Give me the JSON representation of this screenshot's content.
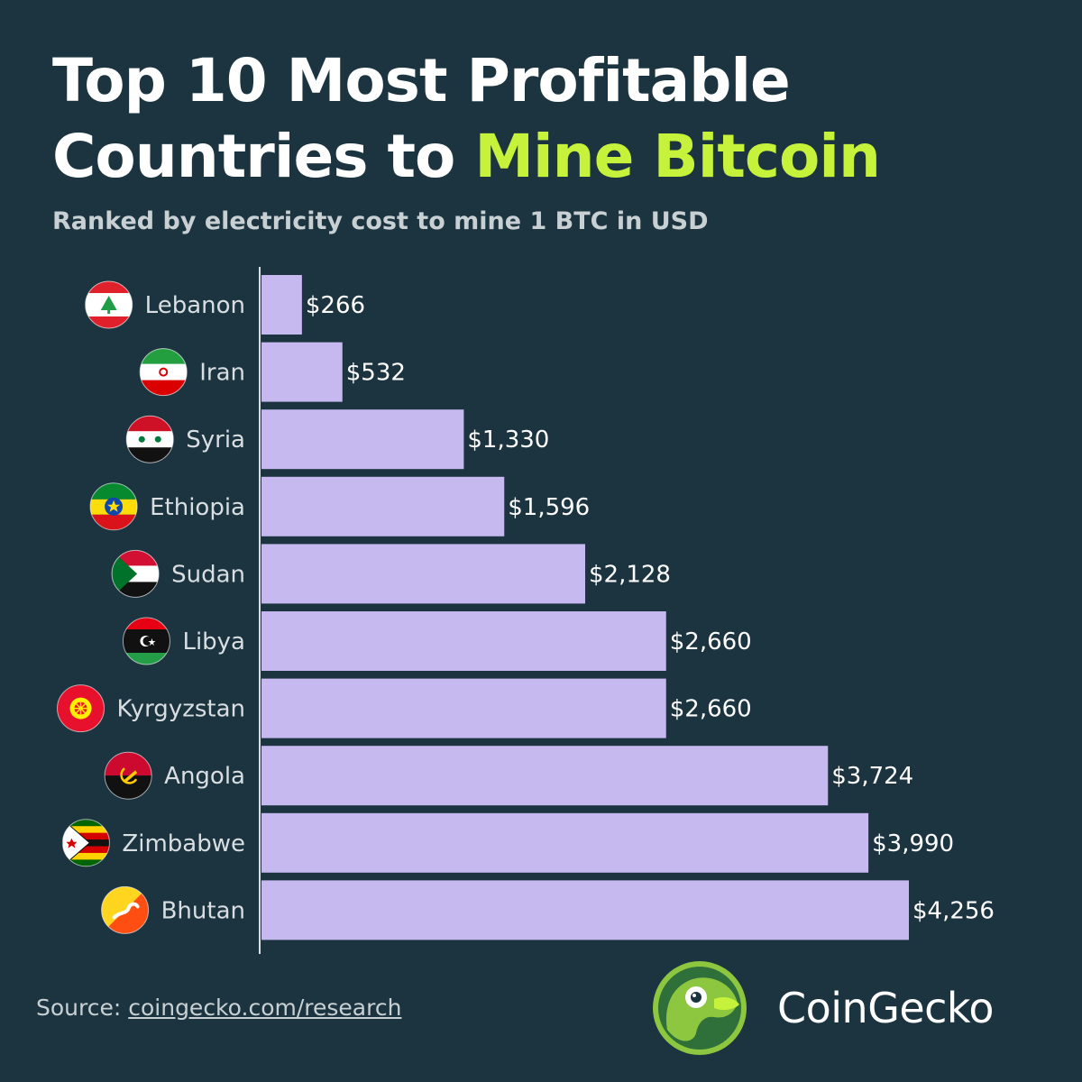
{
  "title": {
    "line1": "Top 10 Most Profitable",
    "line2_plain": "Countries to ",
    "line2_accent": "Mine Bitcoin"
  },
  "subtitle": "Ranked by electricity cost to mine 1 BTC in USD",
  "chart_data": {
    "type": "bar",
    "orientation": "horizontal",
    "categories": [
      "Lebanon",
      "Iran",
      "Syria",
      "Ethiopia",
      "Sudan",
      "Libya",
      "Kyrgyzstan",
      "Angola",
      "Zimbabwe",
      "Bhutan"
    ],
    "values": [
      266,
      532,
      1330,
      1596,
      2128,
      2660,
      2660,
      3724,
      3990,
      4256
    ],
    "value_labels": [
      "$266",
      "$532",
      "$1,330",
      "$1,596",
      "$2,128",
      "$2,660",
      "$2,660",
      "$3,724",
      "$3,990",
      "$4,256"
    ],
    "title": "Top 10 Most Profitable Countries to Mine Bitcoin",
    "subtitle": "Ranked by electricity cost to mine 1 BTC in USD",
    "xlim": [
      0,
      4256
    ],
    "grid": false,
    "bar_color": "#c6b9f0"
  },
  "flags": [
    "lebanon-flag-icon",
    "iran-flag-icon",
    "syria-flag-icon",
    "ethiopia-flag-icon",
    "sudan-flag-icon",
    "libya-flag-icon",
    "kyrgyzstan-flag-icon",
    "angola-flag-icon",
    "zimbabwe-flag-icon",
    "bhutan-flag-icon"
  ],
  "source": {
    "prefix": "Source: ",
    "link": "coingecko.com/research"
  },
  "brand": {
    "name": "CoinGecko",
    "logo_icon": "coingecko-logo-icon"
  },
  "colors": {
    "background": "#1b343f",
    "accent": "#c7f23b",
    "bar": "#c6b9f0"
  }
}
